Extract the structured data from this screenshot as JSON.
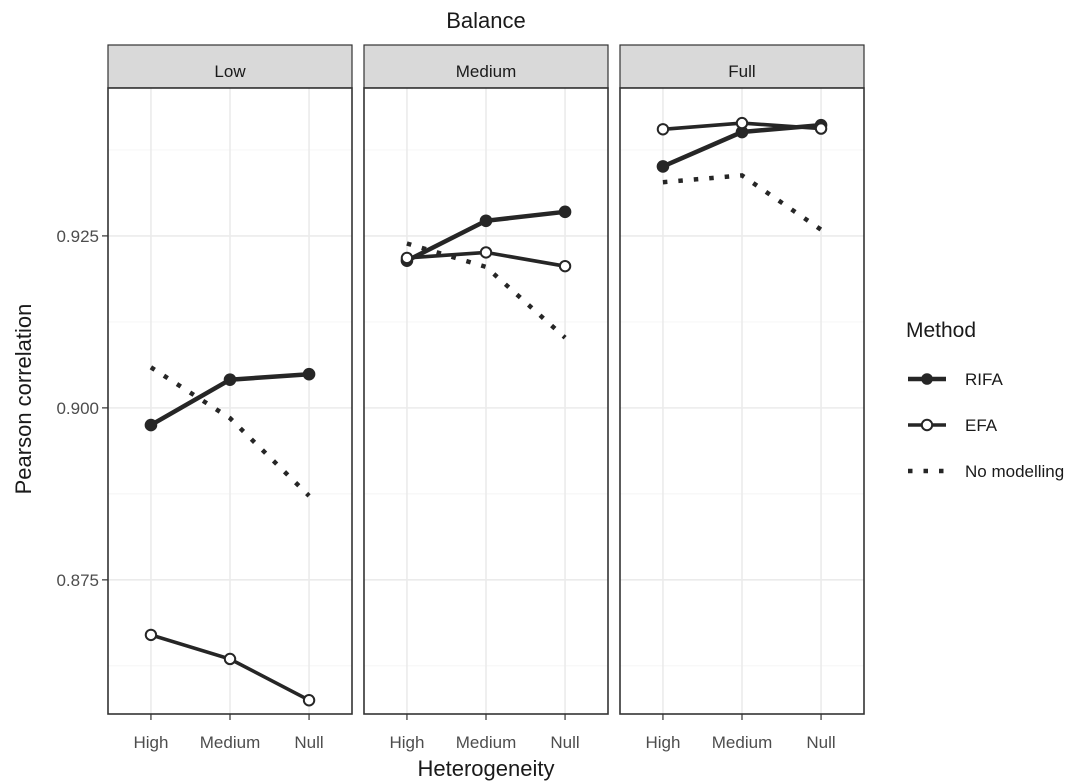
{
  "chart_data": {
    "type": "line",
    "facet_title": "Balance",
    "facets": [
      "Low",
      "Medium",
      "Full"
    ],
    "xlabel": "Heterogeneity",
    "ylabel": "Pearson correlation",
    "categories": [
      "High",
      "Medium",
      "Null"
    ],
    "ylim": [
      0.8555,
      0.9465
    ],
    "yticks": [
      0.875,
      0.9,
      0.925
    ],
    "ytick_labels": [
      "0.875",
      "0.900",
      "0.925"
    ],
    "grid": true,
    "legend": {
      "title": "Method",
      "position": "right",
      "entries": [
        "RIFA",
        "EFA",
        "No modelling"
      ]
    },
    "series": [
      {
        "name": "RIFA",
        "style": "solid-filled",
        "values": {
          "Low": [
            0.8975,
            0.9041,
            0.9049
          ],
          "Medium": [
            0.9214,
            0.9272,
            0.9285
          ],
          "Full": [
            0.9351,
            0.9401,
            0.9411
          ]
        }
      },
      {
        "name": "EFA",
        "style": "solid-open",
        "values": {
          "Low": [
            0.867,
            0.8635,
            0.8575
          ],
          "Medium": [
            0.9218,
            0.9226,
            0.9206
          ],
          "Full": [
            0.9405,
            0.9414,
            0.9406
          ]
        }
      },
      {
        "name": "No modelling",
        "style": "dotted",
        "values": {
          "Low": [
            0.9059,
            0.8985,
            0.8872
          ],
          "Medium": [
            0.9239,
            0.9205,
            0.9102
          ],
          "Full": [
            0.9328,
            0.9338,
            0.9259
          ]
        }
      }
    ],
    "colors": {
      "line": "#262626",
      "strip": "#d9d9d9",
      "grid": "#ebebeb"
    }
  }
}
